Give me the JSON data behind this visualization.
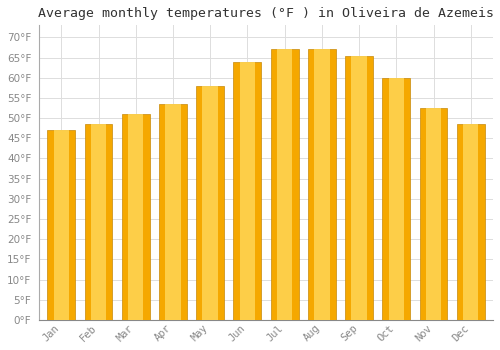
{
  "title": "Average monthly temperatures (°F ) in Oliveira de Azemeis",
  "months": [
    "Jan",
    "Feb",
    "Mar",
    "Apr",
    "May",
    "Jun",
    "Jul",
    "Aug",
    "Sep",
    "Oct",
    "Nov",
    "Dec"
  ],
  "values": [
    47,
    48.5,
    51,
    53.5,
    58,
    64,
    67,
    67,
    65.5,
    60,
    52.5,
    48.5
  ],
  "bar_color_center": "#FFD555",
  "bar_color_edge": "#F5A800",
  "background_color": "#FFFFFF",
  "grid_color": "#DDDDDD",
  "title_fontsize": 9.5,
  "ylim": [
    0,
    73
  ],
  "yticks": [
    0,
    5,
    10,
    15,
    20,
    25,
    30,
    35,
    40,
    45,
    50,
    55,
    60,
    65,
    70
  ],
  "tick_label_color": "#888888",
  "title_color": "#333333"
}
